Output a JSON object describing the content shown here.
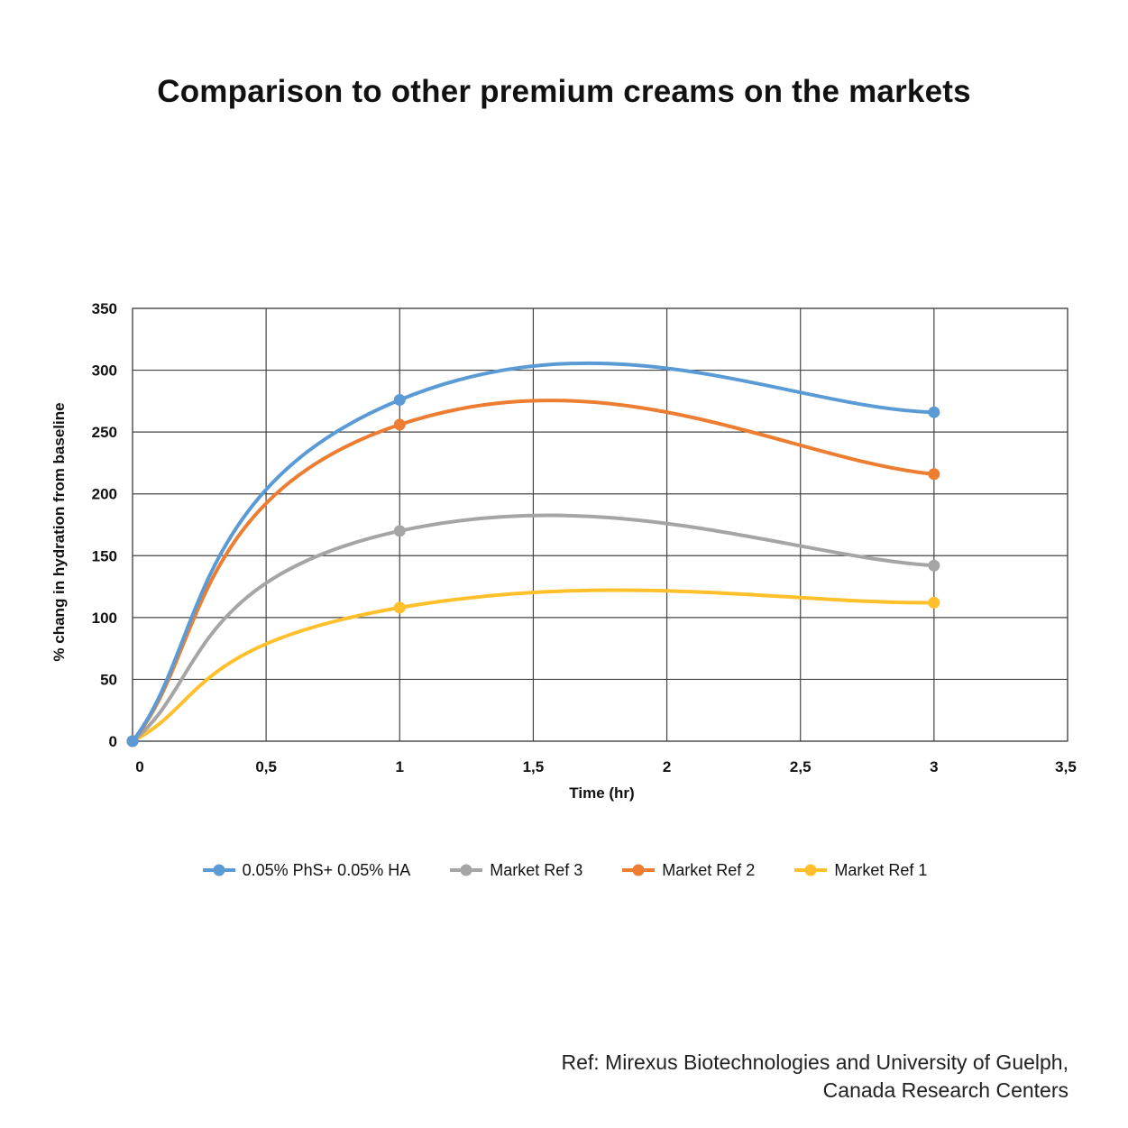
{
  "chart_data": {
    "type": "line",
    "smooth": true,
    "title": "Comparison to other premium creams on the markets",
    "xlabel": "Time (hr)",
    "ylabel": "% chang in hydration from baseline",
    "xlim": [
      0,
      3.5
    ],
    "ylim": [
      0,
      350
    ],
    "x_ticks": [
      "0",
      "0,5",
      "1",
      "1,5",
      "2",
      "2,5",
      "3",
      "3,5"
    ],
    "y_ticks": [
      "0",
      "50",
      "100",
      "150",
      "200",
      "250",
      "300",
      "350"
    ],
    "grid": true,
    "legend_position": "bottom",
    "series": [
      {
        "name": "0.05% PhS+ 0.05% HA",
        "color": "#5B9BD5",
        "x": [
          0,
          1,
          3
        ],
        "y": [
          0,
          276,
          266
        ]
      },
      {
        "name": "Market Ref 3",
        "color": "#A5A5A5",
        "x": [
          0,
          1,
          3
        ],
        "y": [
          0,
          170,
          142
        ]
      },
      {
        "name": "Market Ref 2",
        "color": "#ED7D31",
        "x": [
          0,
          1,
          3
        ],
        "y": [
          0,
          256,
          216
        ]
      },
      {
        "name": "Market Ref 1",
        "color": "#FFC02C",
        "x": [
          0,
          1,
          3
        ],
        "y": [
          0,
          108,
          112
        ]
      }
    ]
  },
  "reference": {
    "line1": "Ref: Mirexus Biotechnologies and University of Guelph,",
    "line2": "Canada Research Centers"
  }
}
